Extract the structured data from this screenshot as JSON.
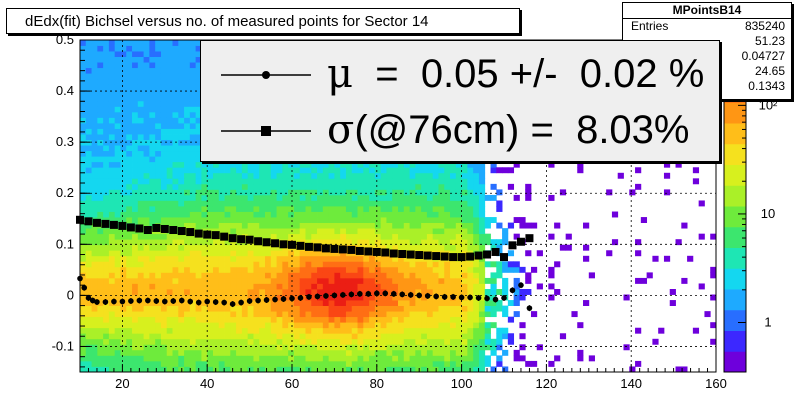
{
  "chart_data": {
    "type": "heatmap",
    "title": "dEdx(fit) Bichsel versus no. of measured points for Sector 14",
    "xlim": [
      10,
      160
    ],
    "ylim": [
      -0.15,
      0.5
    ],
    "x_ticks": [
      20,
      40,
      60,
      80,
      100,
      120,
      140,
      160
    ],
    "y_ticks": [
      -0.1,
      0,
      0.1,
      0.2,
      0.3,
      0.4,
      0.5
    ],
    "y_tick_labels": [
      "-0.1",
      "0",
      "0.1",
      "0.2",
      "0.3",
      "0.4",
      "0.5"
    ],
    "grid": true,
    "color_scale": "log",
    "colorbar_ticks": [
      {
        "value": 1,
        "label": "1"
      },
      {
        "value": 10,
        "label": "10"
      },
      {
        "value": 100,
        "label": "10²"
      }
    ],
    "heatmap_peak": {
      "x": 71,
      "y": 0.01
    },
    "stats": {
      "name": "MPointsB14",
      "entries_label": "Entries",
      "entries": "835240",
      "values": [
        "51.23",
        "0.04727",
        "24.65",
        "0.1343"
      ]
    },
    "legend": [
      {
        "symbol": "μ",
        "text": "  =  0.05 +/-  0.02 %",
        "marker": "circle"
      },
      {
        "symbol": "σ",
        "text": "(@76cm) =  8.03%",
        "marker": "square"
      }
    ],
    "series": [
      {
        "marker": "circle",
        "x": [
          10,
          11,
          12,
          13,
          14,
          16,
          18,
          20,
          22,
          24,
          26,
          28,
          30,
          32,
          34,
          36,
          38,
          40,
          42,
          44,
          46,
          48,
          50,
          52,
          54,
          56,
          58,
          60,
          62,
          64,
          66,
          68,
          70,
          72,
          74,
          76,
          78,
          80,
          82,
          84,
          86,
          88,
          90,
          92,
          94,
          96,
          98,
          100,
          102,
          104,
          106,
          108,
          110,
          112,
          114,
          116
        ],
        "y": [
          0.033,
          0.015,
          -0.005,
          -0.01,
          -0.013,
          -0.013,
          -0.012,
          -0.012,
          -0.011,
          -0.01,
          -0.01,
          -0.011,
          -0.012,
          -0.011,
          -0.01,
          -0.012,
          -0.014,
          -0.012,
          -0.013,
          -0.014,
          -0.017,
          -0.014,
          -0.011,
          -0.01,
          -0.009,
          -0.008,
          -0.007,
          -0.006,
          -0.005,
          -0.003,
          -0.002,
          -0.001,
          0.0,
          0.001,
          0.002,
          0.003,
          0.003,
          0.004,
          0.004,
          0.003,
          0.002,
          0.001,
          0.0,
          -0.001,
          -0.002,
          -0.003,
          -0.003,
          -0.004,
          -0.004,
          -0.005,
          -0.006,
          -0.008,
          -0.005,
          0.01,
          0.02,
          -0.025
        ]
      },
      {
        "marker": "square",
        "x": [
          10,
          12,
          14,
          16,
          18,
          20,
          22,
          24,
          26,
          28,
          30,
          32,
          34,
          36,
          38,
          40,
          42,
          44,
          46,
          48,
          50,
          52,
          54,
          56,
          58,
          60,
          62,
          64,
          66,
          68,
          70,
          72,
          74,
          76,
          78,
          80,
          82,
          84,
          86,
          88,
          90,
          92,
          94,
          96,
          98,
          100,
          102,
          104,
          106,
          108,
          110,
          112,
          114,
          116
        ],
        "y": [
          0.148,
          0.145,
          0.142,
          0.14,
          0.138,
          0.136,
          0.133,
          0.131,
          0.128,
          0.132,
          0.13,
          0.128,
          0.126,
          0.124,
          0.121,
          0.119,
          0.118,
          0.115,
          0.112,
          0.11,
          0.109,
          0.106,
          0.104,
          0.102,
          0.1,
          0.099,
          0.097,
          0.095,
          0.094,
          0.092,
          0.091,
          0.09,
          0.089,
          0.087,
          0.086,
          0.085,
          0.084,
          0.082,
          0.081,
          0.08,
          0.079,
          0.078,
          0.077,
          0.076,
          0.075,
          0.075,
          0.076,
          0.078,
          0.08,
          0.085,
          0.075,
          0.098,
          0.105,
          0.112
        ]
      }
    ]
  }
}
